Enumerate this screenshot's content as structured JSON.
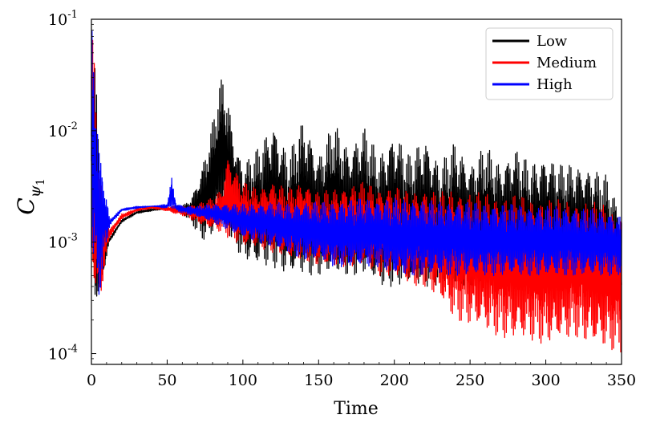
{
  "chart_data": {
    "type": "line",
    "xlabel": "Time",
    "ylabel": {
      "main": "C",
      "sub": "ψ",
      "subsub": "1"
    },
    "xlim": [
      0,
      350
    ],
    "ylim": [
      8e-05,
      0.1
    ],
    "yscale": "log",
    "grid": false,
    "legend_position": "top-right",
    "x_ticks": [
      "0",
      "50",
      "100",
      "150",
      "200",
      "250",
      "300",
      "350"
    ],
    "y_ticks": [
      {
        "value": 0.1,
        "base": "10",
        "exp": "-1"
      },
      {
        "value": 0.01,
        "base": "10",
        "exp": "-2"
      },
      {
        "value": 0.001,
        "base": "10",
        "exp": "-3"
      },
      {
        "value": 0.0001,
        "base": "10",
        "exp": "-4"
      }
    ],
    "series": [
      {
        "name": "Low",
        "color": "#000000",
        "envelope": [
          [
            0,
            0.1,
            0.0008
          ],
          [
            2,
            0.05,
            0.0003
          ],
          [
            5,
            0.008,
            0.0002
          ],
          [
            8,
            0.002,
            0.0005
          ],
          [
            12,
            0.0011,
            0.001
          ],
          [
            20,
            0.0016,
            0.0015
          ],
          [
            30,
            0.0019,
            0.0018
          ],
          [
            40,
            0.002,
            0.0019
          ],
          [
            50,
            0.002,
            0.002
          ],
          [
            55,
            0.0021,
            0.0019
          ],
          [
            62,
            0.0022,
            0.0017
          ],
          [
            66,
            0.0025,
            0.0015
          ],
          [
            70,
            0.0035,
            0.0012
          ],
          [
            75,
            0.006,
            0.001
          ],
          [
            80,
            0.012,
            0.0011
          ],
          [
            84,
            0.025,
            0.0013
          ],
          [
            87,
            0.032,
            0.0015
          ],
          [
            90,
            0.02,
            0.0012
          ],
          [
            95,
            0.008,
            0.0009
          ],
          [
            100,
            0.005,
            0.0007
          ],
          [
            110,
            0.007,
            0.0006
          ],
          [
            120,
            0.012,
            0.0006
          ],
          [
            130,
            0.006,
            0.0005
          ],
          [
            140,
            0.013,
            0.0005
          ],
          [
            150,
            0.006,
            0.0005
          ],
          [
            160,
            0.012,
            0.0005
          ],
          [
            170,
            0.007,
            0.0005
          ],
          [
            180,
            0.011,
            0.0005
          ],
          [
            190,
            0.006,
            0.0004
          ],
          [
            200,
            0.01,
            0.0004
          ],
          [
            210,
            0.006,
            0.0004
          ],
          [
            220,
            0.009,
            0.0004
          ],
          [
            230,
            0.005,
            0.0004
          ],
          [
            240,
            0.008,
            0.0004
          ],
          [
            250,
            0.005,
            0.0004
          ],
          [
            260,
            0.0075,
            0.0004
          ],
          [
            270,
            0.005,
            0.0004
          ],
          [
            280,
            0.007,
            0.0004
          ],
          [
            290,
            0.005,
            0.0004
          ],
          [
            300,
            0.006,
            0.0004
          ],
          [
            310,
            0.005,
            0.0004
          ],
          [
            320,
            0.005,
            0.0004
          ],
          [
            330,
            0.0045,
            0.0004
          ],
          [
            340,
            0.004,
            0.0003
          ],
          [
            350,
            0.0018,
            0.0003
          ]
        ]
      },
      {
        "name": "Medium",
        "color": "#ff0000",
        "envelope": [
          [
            0,
            0.1,
            0.0008
          ],
          [
            2,
            0.04,
            0.0003
          ],
          [
            5,
            0.006,
            0.0002
          ],
          [
            8,
            0.002,
            0.0005
          ],
          [
            12,
            0.0013,
            0.0011
          ],
          [
            20,
            0.0018,
            0.0016
          ],
          [
            30,
            0.002,
            0.0019
          ],
          [
            40,
            0.0021,
            0.002
          ],
          [
            50,
            0.0021,
            0.0019
          ],
          [
            55,
            0.0021,
            0.0018
          ],
          [
            62,
            0.0021,
            0.0017
          ],
          [
            70,
            0.0022,
            0.0015
          ],
          [
            80,
            0.0025,
            0.0013
          ],
          [
            86,
            0.003,
            0.0012
          ],
          [
            90,
            0.006,
            0.0011
          ],
          [
            95,
            0.0045,
            0.001
          ],
          [
            100,
            0.0035,
            0.0009
          ],
          [
            110,
            0.003,
            0.0009
          ],
          [
            120,
            0.0035,
            0.0008
          ],
          [
            130,
            0.003,
            0.0007
          ],
          [
            140,
            0.0035,
            0.0007
          ],
          [
            150,
            0.0028,
            0.0006
          ],
          [
            160,
            0.003,
            0.0006
          ],
          [
            170,
            0.0032,
            0.0006
          ],
          [
            180,
            0.0035,
            0.0006
          ],
          [
            190,
            0.003,
            0.0005
          ],
          [
            200,
            0.0032,
            0.0005
          ],
          [
            210,
            0.0028,
            0.0004
          ],
          [
            220,
            0.003,
            0.0004
          ],
          [
            230,
            0.0028,
            0.0003
          ],
          [
            240,
            0.003,
            0.0002
          ],
          [
            250,
            0.0028,
            0.00018
          ],
          [
            260,
            0.0028,
            0.00016
          ],
          [
            270,
            0.0026,
            0.00014
          ],
          [
            280,
            0.0027,
            0.00013
          ],
          [
            290,
            0.0025,
            0.00013
          ],
          [
            300,
            0.0025,
            0.00012
          ],
          [
            310,
            0.0024,
            0.00013
          ],
          [
            320,
            0.0024,
            0.00014
          ],
          [
            330,
            0.0023,
            0.00012
          ],
          [
            340,
            0.0022,
            0.00011
          ],
          [
            350,
            0.0018,
            0.0001
          ]
        ]
      },
      {
        "name": "High",
        "color": "#0000ff",
        "envelope": [
          [
            0,
            0.1,
            0.0008
          ],
          [
            2,
            0.05,
            0.0004
          ],
          [
            5,
            0.007,
            0.0003
          ],
          [
            8,
            0.0045,
            0.0006
          ],
          [
            12,
            0.0016,
            0.0014
          ],
          [
            20,
            0.002,
            0.0019
          ],
          [
            30,
            0.0021,
            0.002
          ],
          [
            40,
            0.0021,
            0.0021
          ],
          [
            50,
            0.0022,
            0.002
          ],
          [
            53,
            0.0038,
            0.002
          ],
          [
            56,
            0.0022,
            0.0019
          ],
          [
            62,
            0.0021,
            0.0018
          ],
          [
            70,
            0.0021,
            0.0017
          ],
          [
            80,
            0.0022,
            0.0015
          ],
          [
            90,
            0.0022,
            0.0013
          ],
          [
            100,
            0.0022,
            0.0011
          ],
          [
            110,
            0.0022,
            0.001
          ],
          [
            120,
            0.0023,
            0.0009
          ],
          [
            130,
            0.0022,
            0.0008
          ],
          [
            140,
            0.0023,
            0.0007
          ],
          [
            150,
            0.0023,
            0.0007
          ],
          [
            160,
            0.0023,
            0.0006
          ],
          [
            170,
            0.0024,
            0.0006
          ],
          [
            180,
            0.0025,
            0.0006
          ],
          [
            190,
            0.0024,
            0.0006
          ],
          [
            200,
            0.0025,
            0.0005
          ],
          [
            210,
            0.0024,
            0.0005
          ],
          [
            220,
            0.0024,
            0.0005
          ],
          [
            230,
            0.0023,
            0.0005
          ],
          [
            240,
            0.0023,
            0.0005
          ],
          [
            250,
            0.0023,
            0.0005
          ],
          [
            260,
            0.0022,
            0.0005
          ],
          [
            270,
            0.0022,
            0.0005
          ],
          [
            280,
            0.0022,
            0.0005
          ],
          [
            290,
            0.0021,
            0.0005
          ],
          [
            300,
            0.0021,
            0.0005
          ],
          [
            310,
            0.0021,
            0.0005
          ],
          [
            320,
            0.002,
            0.0005
          ],
          [
            330,
            0.002,
            0.0005
          ],
          [
            340,
            0.0019,
            0.0005
          ],
          [
            350,
            0.0017,
            0.0005
          ]
        ]
      }
    ]
  }
}
